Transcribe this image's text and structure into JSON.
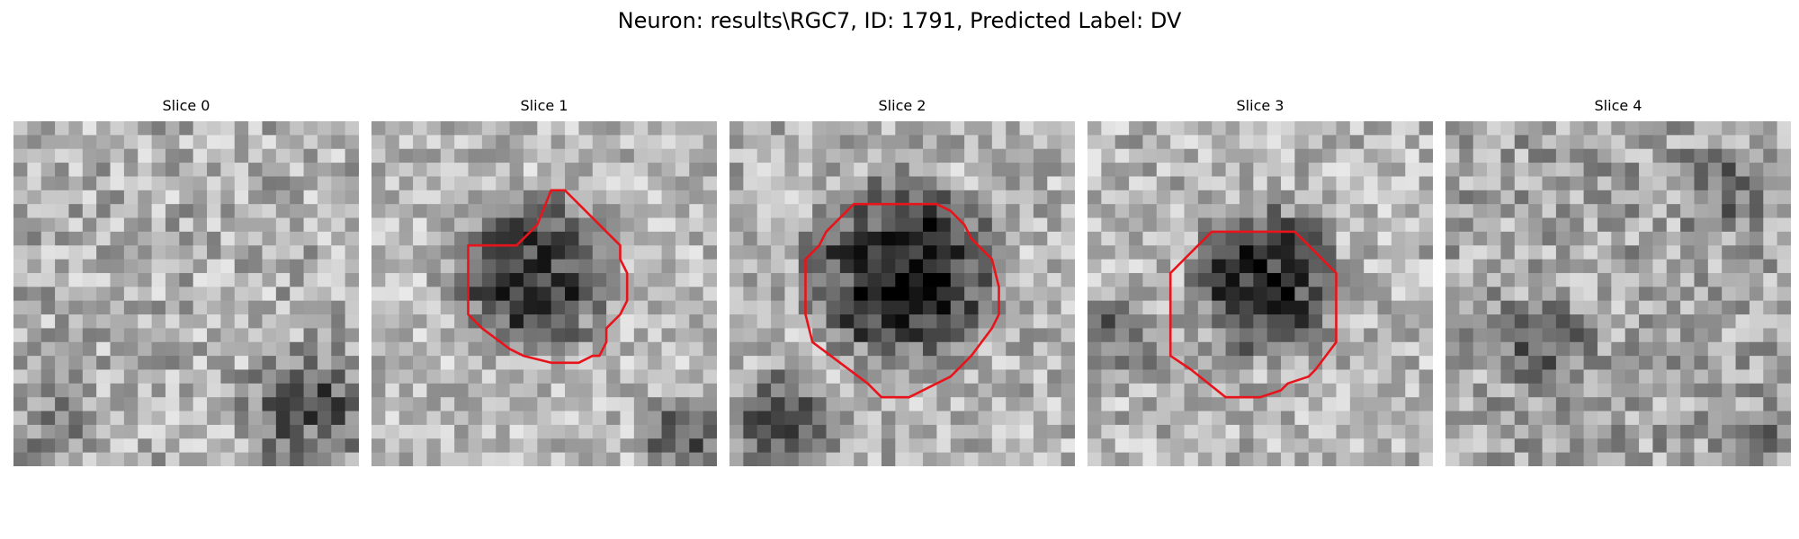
{
  "figure": {
    "title": "Neuron: results\\RGC7, ID: 1791, Predicted Label: DV",
    "contour_color": "#e8141b"
  },
  "slices": [
    {
      "title": "Slice 0",
      "has_contour": false
    },
    {
      "title": "Slice 1",
      "has_contour": true
    },
    {
      "title": "Slice 2",
      "has_contour": true
    },
    {
      "title": "Slice 3",
      "has_contour": true
    },
    {
      "title": "Slice 4",
      "has_contour": false
    }
  ]
}
